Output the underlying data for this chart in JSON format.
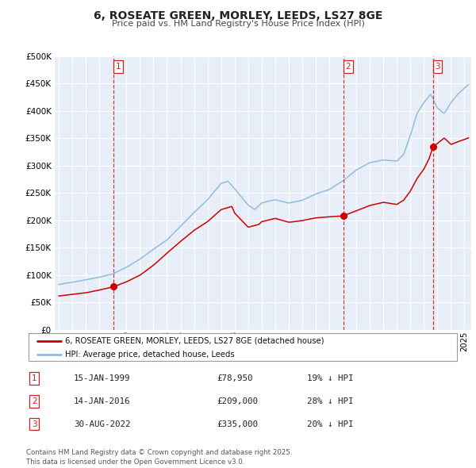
{
  "title": "6, ROSEATE GREEN, MORLEY, LEEDS, LS27 8GE",
  "subtitle": "Price paid vs. HM Land Registry's House Price Index (HPI)",
  "legend_red": "6, ROSEATE GREEN, MORLEY, LEEDS, LS27 8GE (detached house)",
  "legend_blue": "HPI: Average price, detached house, Leeds",
  "sale_labels": [
    {
      "num": "1",
      "date": "15-JAN-1999",
      "price": "£78,950",
      "pct": "19% ↓ HPI"
    },
    {
      "num": "2",
      "date": "14-JAN-2016",
      "price": "£209,000",
      "pct": "28% ↓ HPI"
    },
    {
      "num": "3",
      "date": "30-AUG-2022",
      "price": "£335,000",
      "pct": "20% ↓ HPI"
    }
  ],
  "vline_x": [
    1999.04,
    2016.04,
    2022.66
  ],
  "sale_points_red": [
    [
      1999.04,
      78950
    ],
    [
      2016.04,
      209000
    ],
    [
      2022.66,
      335000
    ]
  ],
  "footer": "Contains HM Land Registry data © Crown copyright and database right 2025.\nThis data is licensed under the Open Government Licence v3.0.",
  "ylim": [
    0,
    500000
  ],
  "yticks": [
    0,
    50000,
    100000,
    150000,
    200000,
    250000,
    300000,
    350000,
    400000,
    450000,
    500000
  ],
  "xlim_start": 1994.7,
  "xlim_end": 2025.5,
  "plot_bg": "#e8eef8",
  "red_color": "#cc0000",
  "blue_color": "#88bbdd",
  "grid_color": "#ffffff",
  "vline_color": "#cc2222"
}
